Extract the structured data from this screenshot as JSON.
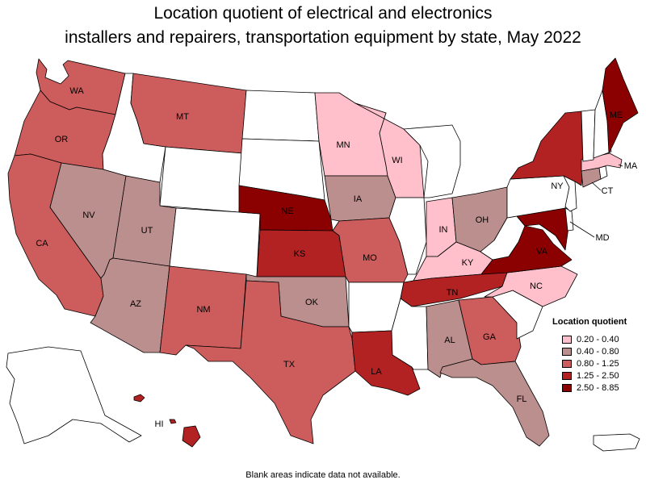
{
  "title": {
    "line1": "Location quotient of electrical and electronics",
    "line2": "installers and repairers, transportation equipment by state, May 2022"
  },
  "legend": {
    "title": "Location quotient",
    "items": [
      {
        "label": "0.20 - 0.40",
        "color": "#ffc0cb"
      },
      {
        "label": "0.40 - 0.80",
        "color": "#bc8f8f"
      },
      {
        "label": "0.80 - 1.25",
        "color": "#cd5c5c"
      },
      {
        "label": "1.25 - 2.50",
        "color": "#b22222"
      },
      {
        "label": "2.50 - 8.85",
        "color": "#8b0000"
      }
    ]
  },
  "footnote": "Blank areas indicate data not available.",
  "states": {
    "WA": {
      "class": 2,
      "labeled": true
    },
    "OR": {
      "class": 2,
      "labeled": true
    },
    "CA": {
      "class": 2,
      "labeled": true
    },
    "NV": {
      "class": 1,
      "labeled": true
    },
    "ID": {
      "class": null,
      "labeled": false
    },
    "MT": {
      "class": 2,
      "labeled": true
    },
    "WY": {
      "class": null,
      "labeled": false
    },
    "UT": {
      "class": 1,
      "labeled": true
    },
    "AZ": {
      "class": 1,
      "labeled": true
    },
    "CO": {
      "class": null,
      "labeled": false
    },
    "NM": {
      "class": 2,
      "labeled": true
    },
    "ND": {
      "class": null,
      "labeled": false
    },
    "SD": {
      "class": null,
      "labeled": false
    },
    "NE": {
      "class": 4,
      "labeled": true
    },
    "KS": {
      "class": 3,
      "labeled": true
    },
    "OK": {
      "class": 1,
      "labeled": true
    },
    "TX": {
      "class": 2,
      "labeled": true
    },
    "MN": {
      "class": 0,
      "labeled": true
    },
    "IA": {
      "class": 1,
      "labeled": true
    },
    "MO": {
      "class": 2,
      "labeled": true
    },
    "AR": {
      "class": null,
      "labeled": false
    },
    "LA": {
      "class": 3,
      "labeled": true
    },
    "WI": {
      "class": 0,
      "labeled": true
    },
    "IL": {
      "class": null,
      "labeled": false
    },
    "MI": {
      "class": null,
      "labeled": false
    },
    "IN": {
      "class": 0,
      "labeled": true
    },
    "OH": {
      "class": 1,
      "labeled": true
    },
    "KY": {
      "class": 0,
      "labeled": true
    },
    "TN": {
      "class": 3,
      "labeled": true
    },
    "MS": {
      "class": null,
      "labeled": false
    },
    "AL": {
      "class": 1,
      "labeled": true
    },
    "GA": {
      "class": 2,
      "labeled": true
    },
    "FL": {
      "class": 1,
      "labeled": true
    },
    "SC": {
      "class": null,
      "labeled": false
    },
    "NC": {
      "class": 0,
      "labeled": true
    },
    "VA": {
      "class": 4,
      "labeled": true
    },
    "WV": {
      "class": null,
      "labeled": false
    },
    "MD": {
      "class": 4,
      "labeled": true
    },
    "DE": {
      "class": null,
      "labeled": false
    },
    "PA": {
      "class": null,
      "labeled": false
    },
    "NJ": {
      "class": null,
      "labeled": false
    },
    "NY": {
      "class": 3,
      "labeled": true
    },
    "CT": {
      "class": 1,
      "labeled": true
    },
    "RI": {
      "class": null,
      "labeled": false
    },
    "MA": {
      "class": 0,
      "labeled": true
    },
    "VT": {
      "class": null,
      "labeled": false
    },
    "NH": {
      "class": null,
      "labeled": false
    },
    "ME": {
      "class": 4,
      "labeled": true
    },
    "AK": {
      "class": null,
      "labeled": false
    },
    "HI": {
      "class": 3,
      "labeled": true
    },
    "PR": {
      "class": null,
      "labeled": false
    }
  }
}
